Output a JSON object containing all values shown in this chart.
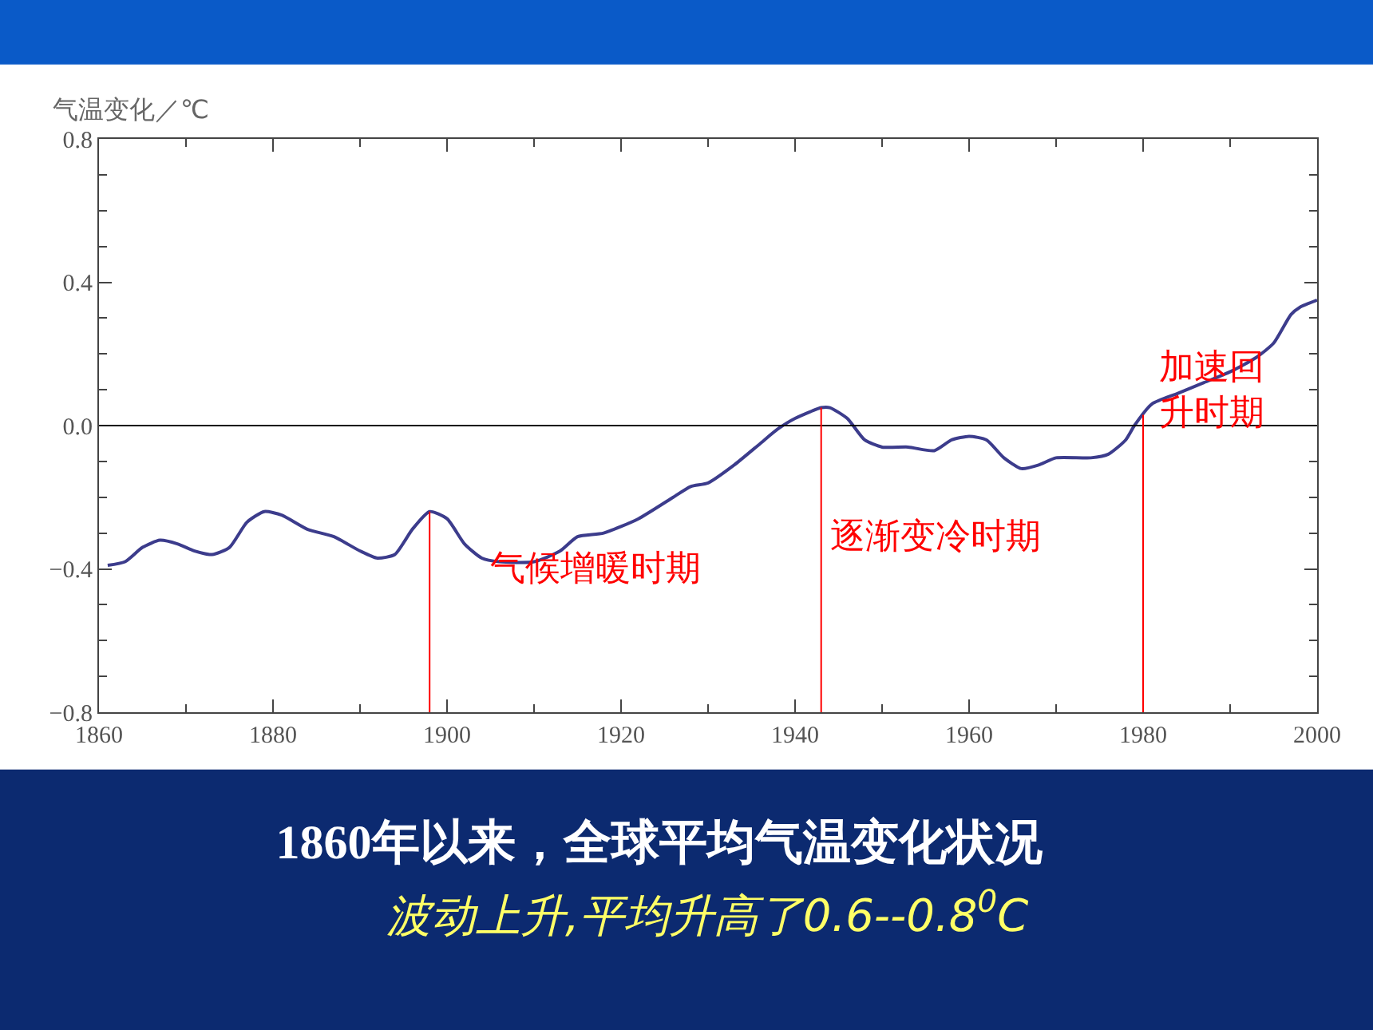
{
  "chart_data": {
    "type": "line",
    "title": "1860年以来，全球平均气温变化状况",
    "subtitle": "波动上升,平均升高了0.6--0.8$^{0}$C",
    "ylabel": "气温变化／℃",
    "x": [
      1861,
      1863,
      1865,
      1867,
      1869,
      1871,
      1873,
      1875,
      1877,
      1879,
      1881,
      1884,
      1887,
      1890,
      1892,
      1894,
      1896,
      1898,
      1900,
      1902,
      1904,
      1906,
      1910,
      1913,
      1915,
      1918,
      1922,
      1926,
      1928,
      1930,
      1933,
      1936,
      1938,
      1940,
      1943,
      1944,
      1946,
      1948,
      1950,
      1953,
      1956,
      1958,
      1960,
      1962,
      1964,
      1966,
      1968,
      1970,
      1974,
      1976,
      1978,
      1979,
      1981,
      1984,
      1987,
      1990,
      1993,
      1995,
      1997,
      1998,
      2000
    ],
    "series": [
      {
        "color": "#3c3c8c",
        "values": [
          -0.39,
          -0.38,
          -0.34,
          -0.32,
          -0.33,
          -0.35,
          -0.36,
          -0.34,
          -0.27,
          -0.24,
          -0.25,
          -0.29,
          -0.31,
          -0.35,
          -0.37,
          -0.36,
          -0.29,
          -0.24,
          -0.26,
          -0.33,
          -0.37,
          -0.38,
          -0.38,
          -0.35,
          -0.31,
          -0.3,
          -0.26,
          -0.2,
          -0.17,
          -0.16,
          -0.11,
          -0.05,
          -0.01,
          0.02,
          0.05,
          0.05,
          0.02,
          -0.04,
          -0.06,
          -0.06,
          -0.07,
          -0.04,
          -0.03,
          -0.04,
          -0.09,
          -0.12,
          -0.11,
          -0.09,
          -0.09,
          -0.08,
          -0.04,
          0.0,
          0.06,
          0.09,
          0.12,
          0.15,
          0.19,
          0.23,
          0.31,
          0.33,
          0.35
        ]
      }
    ],
    "xlim": [
      1860,
      2000
    ],
    "xticks": [
      1860,
      1880,
      1900,
      1920,
      1940,
      1960,
      1980,
      2000
    ],
    "ylim": [
      -0.8,
      0.8
    ],
    "yticks": [
      -0.8,
      -0.4,
      {
        "value": 0,
        "label": "0.0"
      },
      0.4,
      0.8
    ],
    "ref_lines": [
      {
        "axis": "y",
        "value": 0,
        "color": "#000000"
      },
      {
        "axis": "x",
        "value": 1898,
        "color": "#ff0000",
        "label": "气候增暖时期"
      },
      {
        "axis": "x",
        "value": 1943,
        "color": "#ff0000",
        "label": "逐渐变冷时期"
      },
      {
        "axis": "x",
        "value": 1980,
        "color": "#ff0000",
        "label": "加速回升时期"
      }
    ],
    "marker": "none",
    "line_style": "solid"
  }
}
